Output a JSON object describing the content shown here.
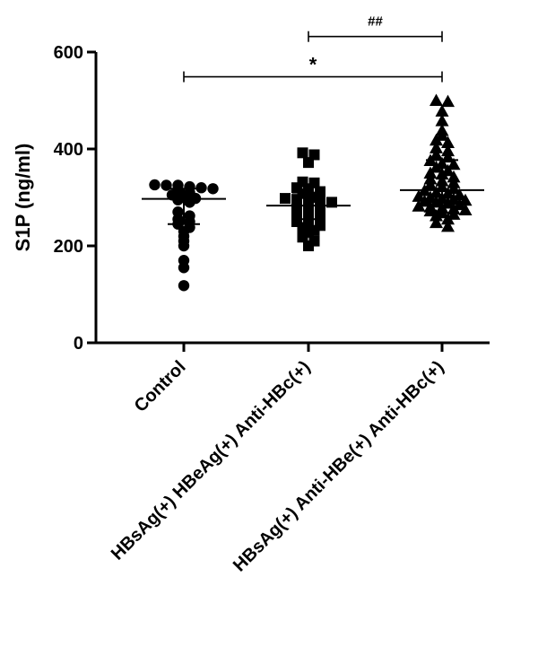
{
  "chart_data": {
    "type": "scatter",
    "ylabel": "S1P (ng/ml)",
    "ylim": [
      0,
      600
    ],
    "yticks": [
      0,
      200,
      400,
      600
    ],
    "categories": [
      "Control",
      "HBsAg(+) HBeAg(+) Anti-HBc(+)",
      "HBsAg(+) Anti-HBe(+) Anti-HBc(+)"
    ],
    "series": [
      {
        "marker": "circle",
        "values": [
          325,
          322,
          320,
          318,
          326,
          325,
          315,
          310,
          305,
          298,
          300,
          295,
          290,
          270,
          262,
          255,
          250,
          245,
          238,
          230,
          220,
          210,
          200,
          170,
          155,
          118
        ],
        "mean": 297,
        "sd_low": 245,
        "sd_high": 318
      },
      {
        "marker": "square",
        "values": [
          392,
          388,
          372,
          332,
          330,
          320,
          318,
          312,
          308,
          300,
          298,
          296,
          295,
          292,
          290,
          288,
          285,
          280,
          278,
          276,
          270,
          262,
          258,
          255,
          250,
          246,
          242,
          238,
          232,
          228,
          218,
          210,
          200
        ],
        "mean": 283,
        "sd_low": 255,
        "sd_high": 310
      },
      {
        "marker": "triangle",
        "values": [
          500,
          498,
          478,
          458,
          438,
          428,
          418,
          413,
          402,
          396,
          388,
          383,
          376,
          370,
          368,
          362,
          355,
          350,
          348,
          342,
          338,
          334,
          330,
          326,
          322,
          318,
          314,
          310,
          308,
          305,
          302,
          300,
          298,
          296,
          294,
          292,
          290,
          288,
          285,
          282,
          280,
          278,
          276,
          274,
          272,
          268,
          265,
          262,
          255,
          248,
          240
        ],
        "mean": 315,
        "sd_low": 268,
        "sd_high": 377
      }
    ],
    "comparisons": [
      {
        "from": 1,
        "to": 2,
        "label": "##",
        "y": 632
      },
      {
        "from": 0,
        "to": 2,
        "label": "*",
        "y": 549
      }
    ]
  }
}
